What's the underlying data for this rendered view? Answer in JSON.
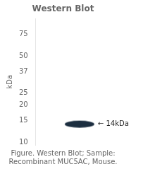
{
  "chart_data": {
    "type": "scatter",
    "title": "Western Blot",
    "ylabel": "kDa",
    "caption": [
      "Figure. Western Blot; Sample:",
      "Recombinant MUC5AC, Mouse."
    ],
    "categories": [
      null
    ],
    "values": [
      14
    ],
    "color": "#1c2e40",
    "marker": "ellipse",
    "annotations": [
      {
        "text": "← 14kDa",
        "y": 14
      }
    ],
    "log": "y",
    "ylim": [
      9.5,
      100
    ],
    "yticks": [
      75,
      50,
      37,
      25,
      20,
      15,
      10
    ],
    "grid": false,
    "tick_labels": "y"
  }
}
